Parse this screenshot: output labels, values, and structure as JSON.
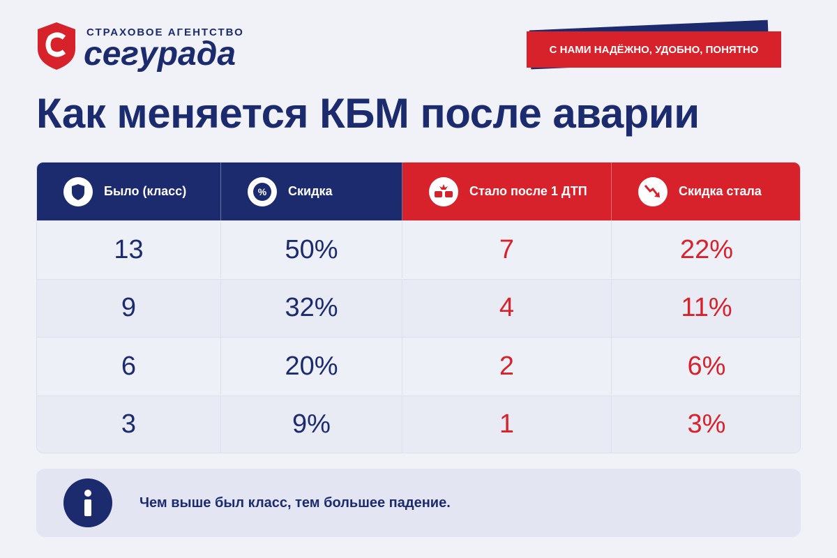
{
  "header": {
    "brand_top": "СТРАХОВОЕ АГЕНТСТВО",
    "brand_name": "сегурада",
    "tagline": "С НАМИ НАДЁЖНО, УДОБНО, ПОНЯТНО"
  },
  "title": "Как меняется КБМ после аварии",
  "table": {
    "columns": [
      "Было (класс)",
      "Скидка",
      "Стало после 1 ДТП",
      "Скидка стала"
    ],
    "rows": [
      [
        "13",
        "50%",
        "7",
        "22%"
      ],
      [
        "9",
        "32%",
        "4",
        "11%"
      ],
      [
        "6",
        "20%",
        "2",
        "6%"
      ],
      [
        "3",
        "9%",
        "1",
        "3%"
      ]
    ]
  },
  "note": "Чем выше был класс, тем большее падение."
}
